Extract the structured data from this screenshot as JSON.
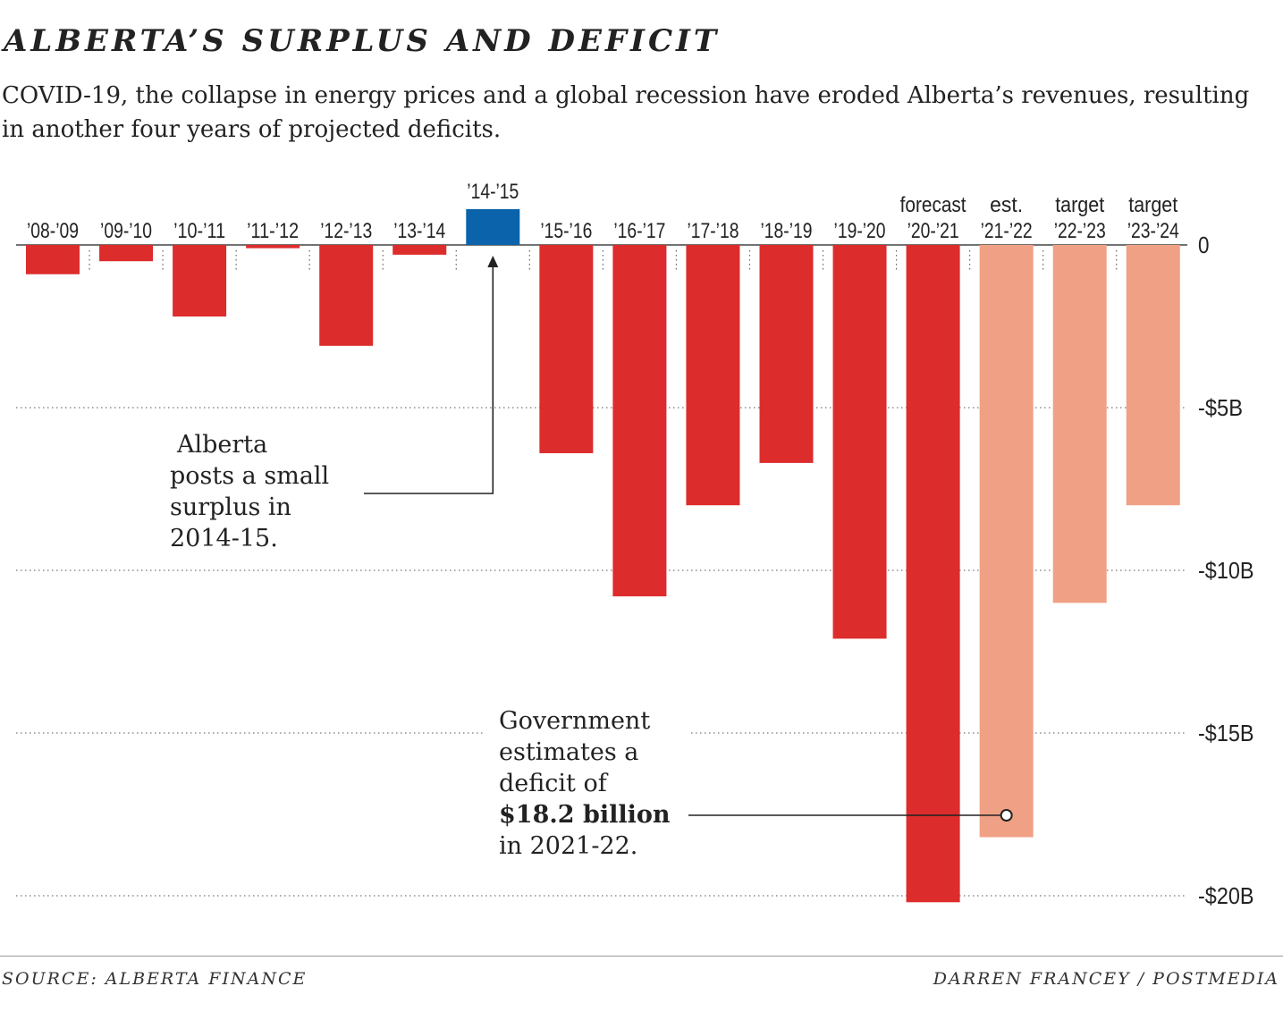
{
  "title": "ALBERTA’S SURPLUS AND DEFICIT",
  "subtitle": "COVID-19, the collapse in energy prices and a global recession have eroded Alberta’s revenues, resulting in another four years of projected deficits.",
  "source": "SOURCE: ALBERTA FINANCE",
  "credit": "DARREN FRANCEY / POSTMEDIA",
  "annotations": {
    "surplus_note": [
      "Alberta",
      "posts a small",
      "surplus in",
      "2014-15."
    ],
    "deficit_note_lines": [
      "Government",
      "estimates a",
      "deficit of"
    ],
    "deficit_note_bold": "$18.2 billion",
    "deficit_note_end": "in 2021-22."
  },
  "colors": {
    "deficit": "#dd2c2c",
    "surplus": "#0a63ab",
    "projected": "#f0a084"
  },
  "chart_data": {
    "type": "bar",
    "categories": [
      "’08-’09",
      "’09-’10",
      "’10-’11",
      "’11-’12",
      "’12-’13",
      "’13-’14",
      "’14-’15",
      "’15-’16",
      "’16-’17",
      "’17-’18",
      "’18-’19",
      "’19-’20",
      "’20-’21",
      "’21-’22",
      "’22-’23",
      "’23-’24"
    ],
    "prefixes": [
      "",
      "",
      "",
      "",
      "",
      "",
      "",
      "",
      "",
      "",
      "",
      "",
      "forecast",
      "est.",
      "target",
      "target"
    ],
    "values": [
      -0.9,
      -0.5,
      -2.2,
      -0.1,
      -3.1,
      -0.3,
      1.1,
      -6.4,
      -10.8,
      -8.0,
      -6.7,
      -12.1,
      -20.2,
      -18.2,
      -11.0,
      -8.0
    ],
    "kind": [
      "actual",
      "actual",
      "actual",
      "actual",
      "actual",
      "actual",
      "actual",
      "actual",
      "actual",
      "actual",
      "actual",
      "actual",
      "actual",
      "projected",
      "projected",
      "projected"
    ],
    "ylim": [
      -20,
      0
    ],
    "yticks": [
      0,
      -5,
      -10,
      -15,
      -20
    ],
    "ytick_labels": [
      "0",
      "-$5B",
      "-$10B",
      "-$15B",
      "-$20B"
    ],
    "grid": true
  }
}
